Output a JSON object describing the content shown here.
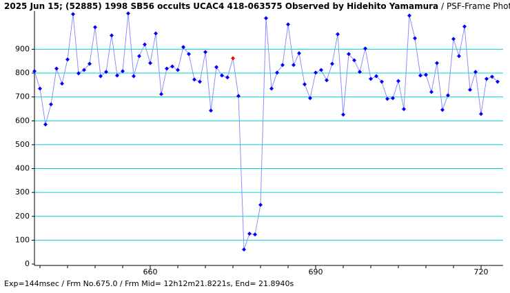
{
  "chart_data": {
    "type": "line",
    "title": "2025 Jun 15; (52885) 1998 SB56 occults UCAC4 418-063575 Observed by Hidehito Yamamura",
    "subtitle": "/ PSF-Frame Photometry /",
    "footer": "Exp=144msec / Frm No.675.0 / Frm Mid= 12h12m21.8221s, End= 21.8940s",
    "x": [
      639,
      640,
      641,
      642,
      643,
      644,
      645,
      646,
      647,
      648,
      649,
      650,
      651,
      652,
      653,
      654,
      655,
      656,
      657,
      658,
      659,
      660,
      661,
      662,
      663,
      664,
      665,
      666,
      667,
      668,
      669,
      670,
      671,
      672,
      673,
      674,
      675,
      676,
      677,
      678,
      679,
      680,
      681,
      682,
      683,
      684,
      685,
      686,
      687,
      688,
      689,
      690,
      691,
      692,
      693,
      694,
      695,
      696,
      697,
      698,
      699,
      700,
      701,
      702,
      703,
      704,
      705,
      706,
      707,
      708,
      709,
      710,
      711,
      712,
      713,
      714,
      715,
      716,
      717,
      718,
      719,
      720,
      721,
      722,
      723
    ],
    "series": [
      {
        "color": "#0000ff",
        "line_color": "#8c8cff",
        "values": [
          808,
          735,
          585,
          669,
          819,
          756,
          857,
          1047,
          799,
          813,
          839,
          992,
          787,
          805,
          958,
          790,
          808,
          1050,
          787,
          871,
          920,
          842,
          966,
          712,
          819,
          828,
          813,
          909,
          880,
          773,
          764,
          888,
          643,
          825,
          790,
          782,
          862,
          704,
          61,
          127,
          124,
          248,
          1030,
          735,
          802,
          834,
          1004,
          834,
          883,
          753,
          695,
          802,
          813,
          770,
          839,
          963,
          626,
          880,
          854,
          805,
          903,
          776,
          787,
          764,
          692,
          695,
          767,
          649,
          1041,
          946,
          790,
          793,
          721,
          842,
          646,
          707,
          943,
          871,
          995,
          730,
          805,
          629,
          776,
          785,
          764
        ]
      }
    ],
    "highlight": {
      "x": 675,
      "color": "#ff0000"
    },
    "xlim": [
      639,
      724
    ],
    "ylim": [
      0,
      1060
    ],
    "xticks": [
      660,
      690,
      720
    ],
    "xminorticks": [
      640,
      645,
      650,
      655,
      665,
      670,
      675,
      680,
      685,
      695,
      700,
      705,
      710,
      715
    ],
    "yticks": [
      0,
      100,
      200,
      300,
      400,
      500,
      600,
      700,
      800,
      900
    ],
    "grid": true,
    "grid_color": "#00d0d0"
  }
}
